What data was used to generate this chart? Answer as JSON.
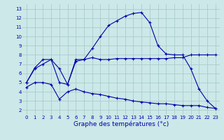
{
  "title": "Graphe des températures (°c)",
  "bg_color": "#cce8e8",
  "line_color": "#0000aa",
  "grid_color": "#aacccc",
  "xlim": [
    -0.5,
    23.5
  ],
  "ylim": [
    1.5,
    13.5
  ],
  "xticks": [
    0,
    1,
    2,
    3,
    4,
    5,
    6,
    7,
    8,
    9,
    10,
    11,
    12,
    13,
    14,
    15,
    16,
    17,
    18,
    19,
    20,
    21,
    22,
    23
  ],
  "yticks": [
    2,
    3,
    4,
    5,
    6,
    7,
    8,
    9,
    10,
    11,
    12,
    13
  ],
  "series1_x": [
    0,
    1,
    2,
    3,
    4,
    5,
    6,
    7,
    8,
    9,
    10,
    11,
    12,
    13,
    14,
    15,
    16,
    17,
    18,
    19,
    20,
    21,
    22,
    23
  ],
  "series1_y": [
    5.0,
    6.5,
    7.0,
    7.5,
    6.5,
    4.8,
    7.5,
    7.5,
    8.7,
    10.0,
    11.2,
    11.7,
    12.2,
    12.5,
    12.6,
    11.5,
    9.0,
    8.1,
    8.0,
    8.0,
    6.5,
    4.3,
    3.0,
    2.2
  ],
  "series2_x": [
    0,
    1,
    2,
    3,
    4,
    5,
    6,
    7,
    8,
    9,
    10,
    11,
    12,
    13,
    14,
    15,
    16,
    17,
    18,
    19,
    20,
    21,
    22,
    23
  ],
  "series2_y": [
    5.0,
    6.6,
    7.5,
    7.5,
    5.0,
    4.8,
    7.3,
    7.5,
    7.7,
    7.5,
    7.5,
    7.6,
    7.6,
    7.6,
    7.6,
    7.6,
    7.6,
    7.6,
    7.7,
    7.7,
    8.0,
    8.0,
    8.0,
    8.0
  ],
  "series3_x": [
    0,
    1,
    2,
    3,
    4,
    5,
    6,
    7,
    8,
    9,
    10,
    11,
    12,
    13,
    14,
    15,
    16,
    17,
    18,
    19,
    20,
    21,
    22,
    23
  ],
  "series3_y": [
    4.5,
    5.0,
    5.0,
    4.8,
    3.2,
    4.0,
    4.3,
    4.0,
    3.8,
    3.7,
    3.5,
    3.3,
    3.2,
    3.0,
    2.9,
    2.8,
    2.7,
    2.7,
    2.6,
    2.5,
    2.5,
    2.5,
    2.3,
    2.2
  ],
  "tick_fontsize": 5.0,
  "xlabel_fontsize": 6.5
}
